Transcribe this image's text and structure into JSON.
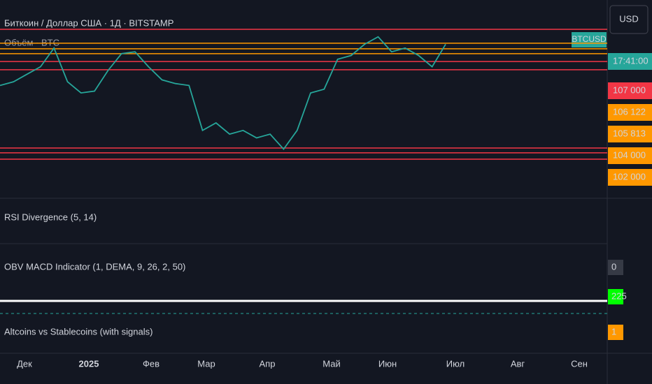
{
  "header": {
    "title": "Биткоин / Доллар США · 1Д · BITSTAMP",
    "volume_label": "Объём · BTC",
    "currency": "USD"
  },
  "price_axis": {
    "symbol": "BTCUSD",
    "time": "17:41:00",
    "labels": [
      "107 000",
      "106 122",
      "105 813",
      "104 000",
      "102 000"
    ]
  },
  "price_chart": {
    "ylim": [
      75000,
      111000
    ],
    "levels": [
      {
        "value": 111000,
        "color": "#f23645"
      },
      {
        "value": 107300,
        "color": "#ff9800"
      },
      {
        "value": 105800,
        "color": "#ff9800"
      },
      {
        "value": 104500,
        "color": "#ff9800"
      },
      {
        "value": 102400,
        "color": "#f23645"
      },
      {
        "value": 100200,
        "color": "#f23645"
      },
      {
        "value": 79300,
        "color": "#f23645"
      },
      {
        "value": 78000,
        "color": "#f23645"
      },
      {
        "value": 76300,
        "color": "#f23645"
      }
    ],
    "values": [
      96000,
      97000,
      99000,
      101000,
      106000,
      97000,
      94000,
      94500,
      100000,
      104500,
      105000,
      101000,
      97500,
      96500,
      96000,
      84000,
      86000,
      83000,
      84000,
      82000,
      83000,
      79000,
      84000,
      94000,
      95000,
      103000,
      104000,
      107000,
      109000,
      105000,
      106000,
      104000,
      101000,
      107000
    ],
    "color": "#26a69a"
  },
  "panes": [
    {
      "name": "RSI Divergence (5, 14)"
    },
    {
      "name": "OBV MACD Indicator (1, DEMA, 9, 26, 2, 50)",
      "value": "0"
    },
    {
      "name": "",
      "value": "225"
    },
    {
      "name": "Altcoins vs Stablecoins (with signals)",
      "value": "1"
    }
  ],
  "time_axis": [
    "Дек",
    "2025",
    "Фев",
    "Мар",
    "Апр",
    "Май",
    "Июн",
    "Июл",
    "Авг",
    "Сен"
  ]
}
